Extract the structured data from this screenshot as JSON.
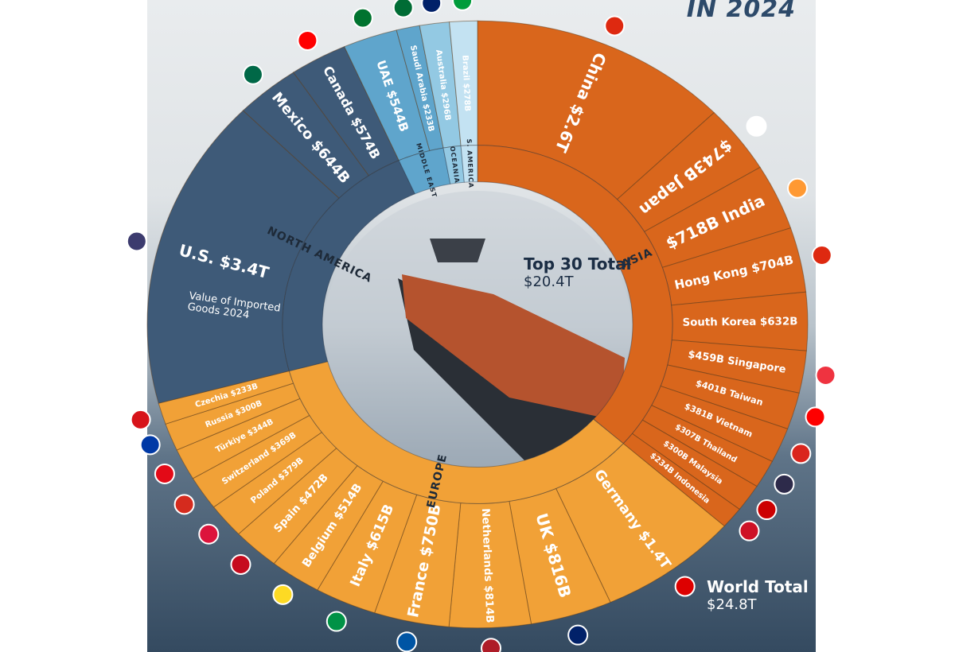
{
  "title": "IN 2024",
  "center_total": {
    "label": "Top 30 Total",
    "value": "$20.4T"
  },
  "world_total": {
    "label": "World Total",
    "value": "$24.8T"
  },
  "us_note": "Value of Imported Goods 2024",
  "colors": {
    "Asia": "#d9661c",
    "Europe": "#f1a137",
    "North America": "#3e5a78",
    "Middle East": "#5fa5cc",
    "Oceania": "#93c9e3",
    "S. America": "#c3e2f2"
  },
  "chart_data": {
    "type": "donut",
    "unit": "USD billions",
    "regions": [
      "ASIA",
      "EUROPE",
      "NORTH AMERICA",
      "MIDDLE EAST",
      "OCEANIA",
      "S. AMERICA"
    ],
    "countries": [
      {
        "name": "China",
        "value": 2600,
        "label": "China $2.6T",
        "region": "Asia",
        "flag": "#de2910"
      },
      {
        "name": "Japan",
        "value": 743,
        "label": "$743B Japan",
        "region": "Asia",
        "flag": "#ffffff"
      },
      {
        "name": "India",
        "value": 718,
        "label": "$718B India",
        "region": "Asia",
        "flag": "#ff9933"
      },
      {
        "name": "Hong Kong",
        "value": 704,
        "label": "Hong Kong $704B",
        "region": "Asia",
        "flag": "#de2910"
      },
      {
        "name": "South Korea",
        "value": 632,
        "label": "South Korea $632B",
        "region": "Asia",
        "flag": "#ffffff"
      },
      {
        "name": "Singapore",
        "value": 459,
        "label": "$459B Singapore",
        "region": "Asia",
        "flag": "#ef3340"
      },
      {
        "name": "Taiwan",
        "value": 401,
        "label": "$401B Taiwan",
        "region": "Asia",
        "flag": "#fe0000"
      },
      {
        "name": "Vietnam",
        "value": 381,
        "label": "$381B Vietnam",
        "region": "Asia",
        "flag": "#da251d"
      },
      {
        "name": "Thailand",
        "value": 307,
        "label": "$307B Thailand",
        "region": "Asia",
        "flag": "#2d2a4a"
      },
      {
        "name": "Malaysia",
        "value": 300,
        "label": "$300B Malaysia",
        "region": "Asia",
        "flag": "#cc0001"
      },
      {
        "name": "Indonesia",
        "value": 234,
        "label": "$234B Indonesia",
        "region": "Asia",
        "flag": "#ce1126"
      },
      {
        "name": "Germany",
        "value": 1400,
        "label": "Germany $1.4T",
        "region": "Europe",
        "flag": "#dd0000"
      },
      {
        "name": "UK",
        "value": 816,
        "label": "UK $816B",
        "region": "Europe",
        "flag": "#012169"
      },
      {
        "name": "Netherlands",
        "value": 814,
        "label": "Netherlands $814B",
        "region": "Europe",
        "flag": "#ae1c28"
      },
      {
        "name": "France",
        "value": 750,
        "label": "France $750B",
        "region": "Europe",
        "flag": "#0055a4"
      },
      {
        "name": "Italy",
        "value": 615,
        "label": "Italy $615B",
        "region": "Europe",
        "flag": "#009246"
      },
      {
        "name": "Belgium",
        "value": 514,
        "label": "Belgium $514B",
        "region": "Europe",
        "flag": "#fdda24"
      },
      {
        "name": "Spain",
        "value": 472,
        "label": "Spain $472B",
        "region": "Europe",
        "flag": "#c60b1e"
      },
      {
        "name": "Poland",
        "value": 379,
        "label": "Poland $379B",
        "region": "Europe",
        "flag": "#dc143c"
      },
      {
        "name": "Switzerland",
        "value": 369,
        "label": "Switzerland $369B",
        "region": "Europe",
        "flag": "#d52b1e"
      },
      {
        "name": "Türkiye",
        "value": 344,
        "label": "Türkiye $344B",
        "region": "Europe",
        "flag": "#e30a17"
      },
      {
        "name": "Russia",
        "value": 300,
        "label": "Russia $300B",
        "region": "Europe",
        "flag": "#0039a6"
      },
      {
        "name": "Czechia",
        "value": 233,
        "label": "Czechia $233B",
        "region": "Europe",
        "flag": "#d7141a"
      },
      {
        "name": "U.S.",
        "value": 3400,
        "label": "U.S. $3.4T",
        "region": "North America",
        "flag": "#3c3b6e"
      },
      {
        "name": "Mexico",
        "value": 644,
        "label": "Mexico $644B",
        "region": "North America",
        "flag": "#006847"
      },
      {
        "name": "Canada",
        "value": 574,
        "label": "Canada $574B",
        "region": "North America",
        "flag": "#ff0000"
      },
      {
        "name": "UAE",
        "value": 544,
        "label": "UAE $544B",
        "region": "Middle East",
        "flag": "#00732f"
      },
      {
        "name": "Saudi Arabia",
        "value": 233,
        "label": "Saudi Arabia $233B",
        "region": "Middle East",
        "flag": "#006c35"
      },
      {
        "name": "Australia",
        "value": 296,
        "label": "Australia $296B",
        "region": "Oceania",
        "flag": "#012169"
      },
      {
        "name": "Brazil",
        "value": 278,
        "label": "Brazil $278B",
        "region": "S. America",
        "flag": "#009c3b"
      }
    ],
    "region_labels": [
      {
        "region": "Asia",
        "label": "ASIA"
      },
      {
        "region": "Europe",
        "label": "EUROPE"
      },
      {
        "region": "North America",
        "label": "NORTH AMERICA"
      },
      {
        "region": "Middle East",
        "label": "MIDDLE EAST"
      },
      {
        "region": "Oceania",
        "label": "OCEANIA"
      },
      {
        "region": "S. America",
        "label": "S. AMERICA"
      }
    ]
  }
}
